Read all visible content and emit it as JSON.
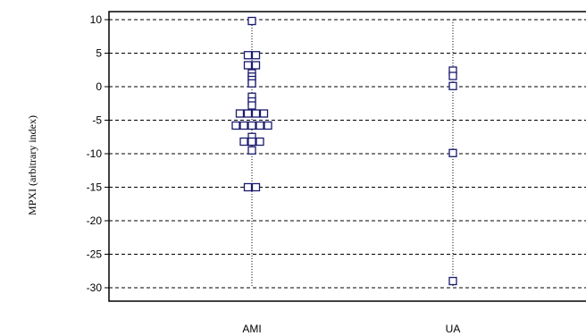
{
  "chart_data": {
    "type": "scatter",
    "title": "",
    "xlabel": "",
    "ylabel": "MPXI (arbitrary index)",
    "categories": [
      "AMI",
      "UA"
    ],
    "ylim": [
      -31,
      11
    ],
    "yticks": [
      10,
      5,
      0,
      -5,
      -10,
      -15,
      -20,
      -25,
      -30
    ],
    "grid": true,
    "legend": "none",
    "marker_color": "#1a1a6e",
    "points": [
      {
        "category": "AMI",
        "y": 9.8
      },
      {
        "category": "AMI",
        "y": 4.7
      },
      {
        "category": "AMI",
        "y": 4.7
      },
      {
        "category": "AMI",
        "y": 3.2
      },
      {
        "category": "AMI",
        "y": 3.2
      },
      {
        "category": "AMI",
        "y": 2.0
      },
      {
        "category": "AMI",
        "y": 1.5
      },
      {
        "category": "AMI",
        "y": 1.0
      },
      {
        "category": "AMI",
        "y": 0.5
      },
      {
        "category": "AMI",
        "y": -1.5
      },
      {
        "category": "AMI",
        "y": -2.2
      },
      {
        "category": "AMI",
        "y": -2.8
      },
      {
        "category": "AMI",
        "y": -4.0
      },
      {
        "category": "AMI",
        "y": -4.0
      },
      {
        "category": "AMI",
        "y": -4.0
      },
      {
        "category": "AMI",
        "y": -4.0
      },
      {
        "category": "AMI",
        "y": -5.8
      },
      {
        "category": "AMI",
        "y": -5.8
      },
      {
        "category": "AMI",
        "y": -5.8
      },
      {
        "category": "AMI",
        "y": -5.8
      },
      {
        "category": "AMI",
        "y": -5.8
      },
      {
        "category": "AMI",
        "y": -7.5
      },
      {
        "category": "AMI",
        "y": -8.2
      },
      {
        "category": "AMI",
        "y": -8.2
      },
      {
        "category": "AMI",
        "y": -8.2
      },
      {
        "category": "AMI",
        "y": -9.5
      },
      {
        "category": "AMI",
        "y": -15.0
      },
      {
        "category": "AMI",
        "y": -15.0
      },
      {
        "category": "UA",
        "y": 2.4
      },
      {
        "category": "UA",
        "y": 1.6
      },
      {
        "category": "UA",
        "y": 0.1
      },
      {
        "category": "UA",
        "y": -9.9
      },
      {
        "category": "UA",
        "y": -29.0
      }
    ]
  }
}
